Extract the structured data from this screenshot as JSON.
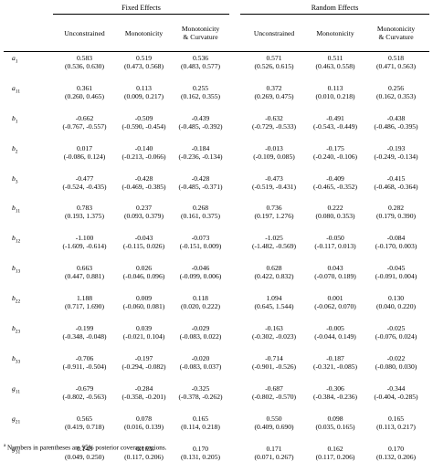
{
  "groups": {
    "fixed": "Fixed Effects",
    "random": "Random Effects"
  },
  "columns": {
    "unconstrained": "Unconstrained",
    "monotonicity": "Monotonicity",
    "mono_curv_1": "Monotonicity",
    "mono_curv_2": "& Curvature"
  },
  "rows": [
    {
      "param": "a",
      "sub": "1",
      "fe": [
        [
          "0.583",
          "(0.536, 0.630)"
        ],
        [
          "0.519",
          "(0.473, 0.568)"
        ],
        [
          "0.536",
          "(0.483, 0.577)"
        ]
      ],
      "re": [
        [
          "0.571",
          "(0.526, 0.615)"
        ],
        [
          "0.511",
          "(0.463, 0.558)"
        ],
        [
          "0.518",
          "(0.471, 0.563)"
        ]
      ]
    },
    {
      "param": "a",
      "sub": "11",
      "fe": [
        [
          "0.361",
          "(0.260, 0.465)"
        ],
        [
          "0.113",
          "(0.009, 0.217)"
        ],
        [
          "0.255",
          "(0.162, 0.355)"
        ]
      ],
      "re": [
        [
          "0.372",
          "(0.269, 0.475)"
        ],
        [
          "0.113",
          "(0.010, 0.218)"
        ],
        [
          "0.256",
          "(0.162, 0.353)"
        ]
      ]
    },
    {
      "param": "b",
      "sub": "1",
      "fe": [
        [
          "-0.662",
          "(-0.767, -0.557)"
        ],
        [
          "-0.509",
          "(-0.590, -0.454)"
        ],
        [
          "-0.439",
          "(-0.485, -0.392)"
        ]
      ],
      "re": [
        [
          "-0.632",
          "(-0.729, -0.533)"
        ],
        [
          "-0.491",
          "(-0.543, -0.449)"
        ],
        [
          "-0.438",
          "(-0.486, -0.395)"
        ]
      ]
    },
    {
      "param": "b",
      "sub": "2",
      "fe": [
        [
          "0.017",
          "(-0.086, 0.124)"
        ],
        [
          "-0.140",
          "(-0.213, -0.066)"
        ],
        [
          "-0.184",
          "(-0.236, -0.134)"
        ]
      ],
      "re": [
        [
          "-0.013",
          "(-0.109, 0.085)"
        ],
        [
          "-0.175",
          "(-0.240, -0.106)"
        ],
        [
          "-0.193",
          "(-0.249, -0.134)"
        ]
      ]
    },
    {
      "param": "b",
      "sub": "3",
      "fe": [
        [
          "-0.477",
          "(-0.524, -0.435)"
        ],
        [
          "-0.428",
          "(-0.469, -0.385)"
        ],
        [
          "-0.428",
          "(-0.485, -0.371)"
        ]
      ],
      "re": [
        [
          "-0.473",
          "(-0.519, -0.431)"
        ],
        [
          "-0.409",
          "(-0.465, -0.352)"
        ],
        [
          "-0.415",
          "(-0.468, -0.364)"
        ]
      ]
    },
    {
      "param": "b",
      "sub": "11",
      "fe": [
        [
          "0.783",
          "(0.193, 1.375)"
        ],
        [
          "0.237",
          "(0.093, 0.379)"
        ],
        [
          "0.268",
          "(0.161, 0.375)"
        ]
      ],
      "re": [
        [
          "0.736",
          "(0.197, 1.276)"
        ],
        [
          "0.222",
          "(0.080, 0.353)"
        ],
        [
          "0.282",
          "(0.179, 0.390)"
        ]
      ]
    },
    {
      "param": "b",
      "sub": "12",
      "fe": [
        [
          "-1.100",
          "(-1.609, -0.614)"
        ],
        [
          "-0.043",
          "(-0.115, 0.026)"
        ],
        [
          "-0.073",
          "(-0.151, 0.009)"
        ]
      ],
      "re": [
        [
          "-1.025",
          "(-1.482, -0.569)"
        ],
        [
          "-0.050",
          "(-0.117, 0.013)"
        ],
        [
          "-0.084",
          "(-0.170, 0.003)"
        ]
      ]
    },
    {
      "param": "b",
      "sub": "13",
      "fe": [
        [
          "0.663",
          "(0.447, 0.881)"
        ],
        [
          "0.026",
          "(-0.046, 0.096)"
        ],
        [
          "-0.046",
          "(-0.099, 0.006)"
        ]
      ],
      "re": [
        [
          "0.628",
          "(0.422, 0.832)"
        ],
        [
          "0.043",
          "(-0.070, 0.189)"
        ],
        [
          "-0.045",
          "(-0.091, 0.004)"
        ]
      ]
    },
    {
      "param": "b",
      "sub": "22",
      "fe": [
        [
          "1.188",
          "(0.717, 1.690)"
        ],
        [
          "0.009",
          "(-0.060, 0.081)"
        ],
        [
          "0.118",
          "(0.020, 0.222)"
        ]
      ],
      "re": [
        [
          "1.094",
          "(0.645, 1.544)"
        ],
        [
          "0.001",
          "(-0.062, 0.070)"
        ],
        [
          "0.130",
          "(0.040, 0.220)"
        ]
      ]
    },
    {
      "param": "b",
      "sub": "23",
      "fe": [
        [
          "-0.199",
          "(-0.348, -0.048)"
        ],
        [
          "0.039",
          "(-0.021, 0.104)"
        ],
        [
          "-0.029",
          "(-0.083, 0.022)"
        ]
      ],
      "re": [
        [
          "-0.163",
          "(-0.302, -0.023)"
        ],
        [
          "-0.005",
          "(-0.044, 0.149)"
        ],
        [
          "-0.025",
          "(-0.076, 0.024)"
        ]
      ]
    },
    {
      "param": "b",
      "sub": "33",
      "fe": [
        [
          "-0.706",
          "(-0.911, -0.504)"
        ],
        [
          "-0.197",
          "(-0.294, -0.082)"
        ],
        [
          "-0.020",
          "(-0.083, 0.037)"
        ]
      ],
      "re": [
        [
          "-0.714",
          "(-0.901, -0.526)"
        ],
        [
          "-0.187",
          "(-0.321, -0.085)"
        ],
        [
          "-0.022",
          "(-0.080, 0.030)"
        ]
      ]
    },
    {
      "param": "g",
      "sub": "11",
      "fe": [
        [
          "-0.679",
          "(-0.802, -0.563)"
        ],
        [
          "-0.284",
          "(-0.358, -0.201)"
        ],
        [
          "-0.325",
          "(-0.378, -0.262)"
        ]
      ],
      "re": [
        [
          "-0.687",
          "(-0.802, -0.570)"
        ],
        [
          "-0.306",
          "(-0.384, -0.236)"
        ],
        [
          "-0.344",
          "(-0.404, -0.285)"
        ]
      ]
    },
    {
      "param": "g",
      "sub": "21",
      "fe": [
        [
          "0.565",
          "(0.419, 0.718)"
        ],
        [
          "0.078",
          "(0.016, 0.139)"
        ],
        [
          "0.165",
          "(0.114, 0.218)"
        ]
      ],
      "re": [
        [
          "0.550",
          "(0.409, 0.690)"
        ],
        [
          "0.098",
          "(0.035, 0.165)"
        ],
        [
          "0.165",
          "(0.113, 0.217)"
        ]
      ]
    },
    {
      "param": "g",
      "sub": "31",
      "fe": [
        [
          "0.148",
          "(0.049, 0.250)"
        ],
        [
          "0.163",
          "(0.117, 0.206)"
        ],
        [
          "0.170",
          "(0.131, 0.205)"
        ]
      ],
      "re": [
        [
          "0.171",
          "(0.071, 0.267)"
        ],
        [
          "0.162",
          "(0.117, 0.206)"
        ],
        [
          "0.170",
          "(0.132, 0.206)"
        ]
      ]
    }
  ],
  "footnote": {
    "marker": "a",
    "text": "Numbers in parentheses are 95% posterior coverage regions."
  }
}
